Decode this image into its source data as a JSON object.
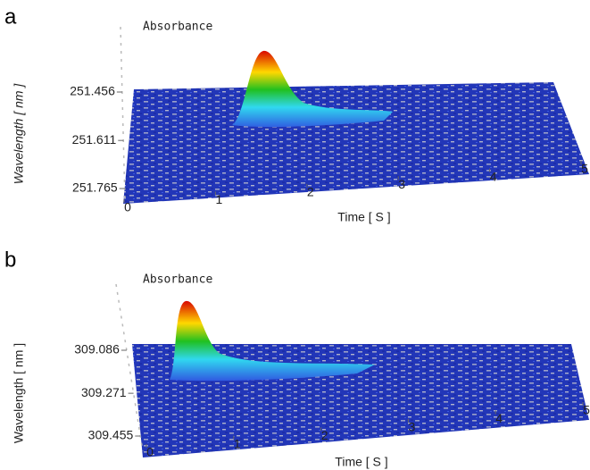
{
  "chart_data": [
    {
      "type": "surface3d",
      "panel_label": "a",
      "title": "Absorbance",
      "x_label": "Time [ S ]",
      "y_label": "Wavelength [ nm ]",
      "xlim": [
        0,
        5
      ],
      "xticks": [
        0,
        1,
        2,
        3,
        4,
        5
      ],
      "ylim": [
        251.456,
        251.765
      ],
      "yticks": [
        251.456,
        251.611,
        251.765
      ]
    },
    {
      "type": "surface3d",
      "panel_label": "b",
      "title": "Absorbance",
      "x_label": "Time [ S ]",
      "y_label": "Wavelength [ nm ]",
      "xlim": [
        0,
        5
      ],
      "xticks": [
        0,
        1,
        2,
        3,
        4,
        5
      ],
      "ylim": [
        309.086,
        309.455
      ],
      "yticks": [
        309.086,
        309.271,
        309.455
      ]
    }
  ]
}
